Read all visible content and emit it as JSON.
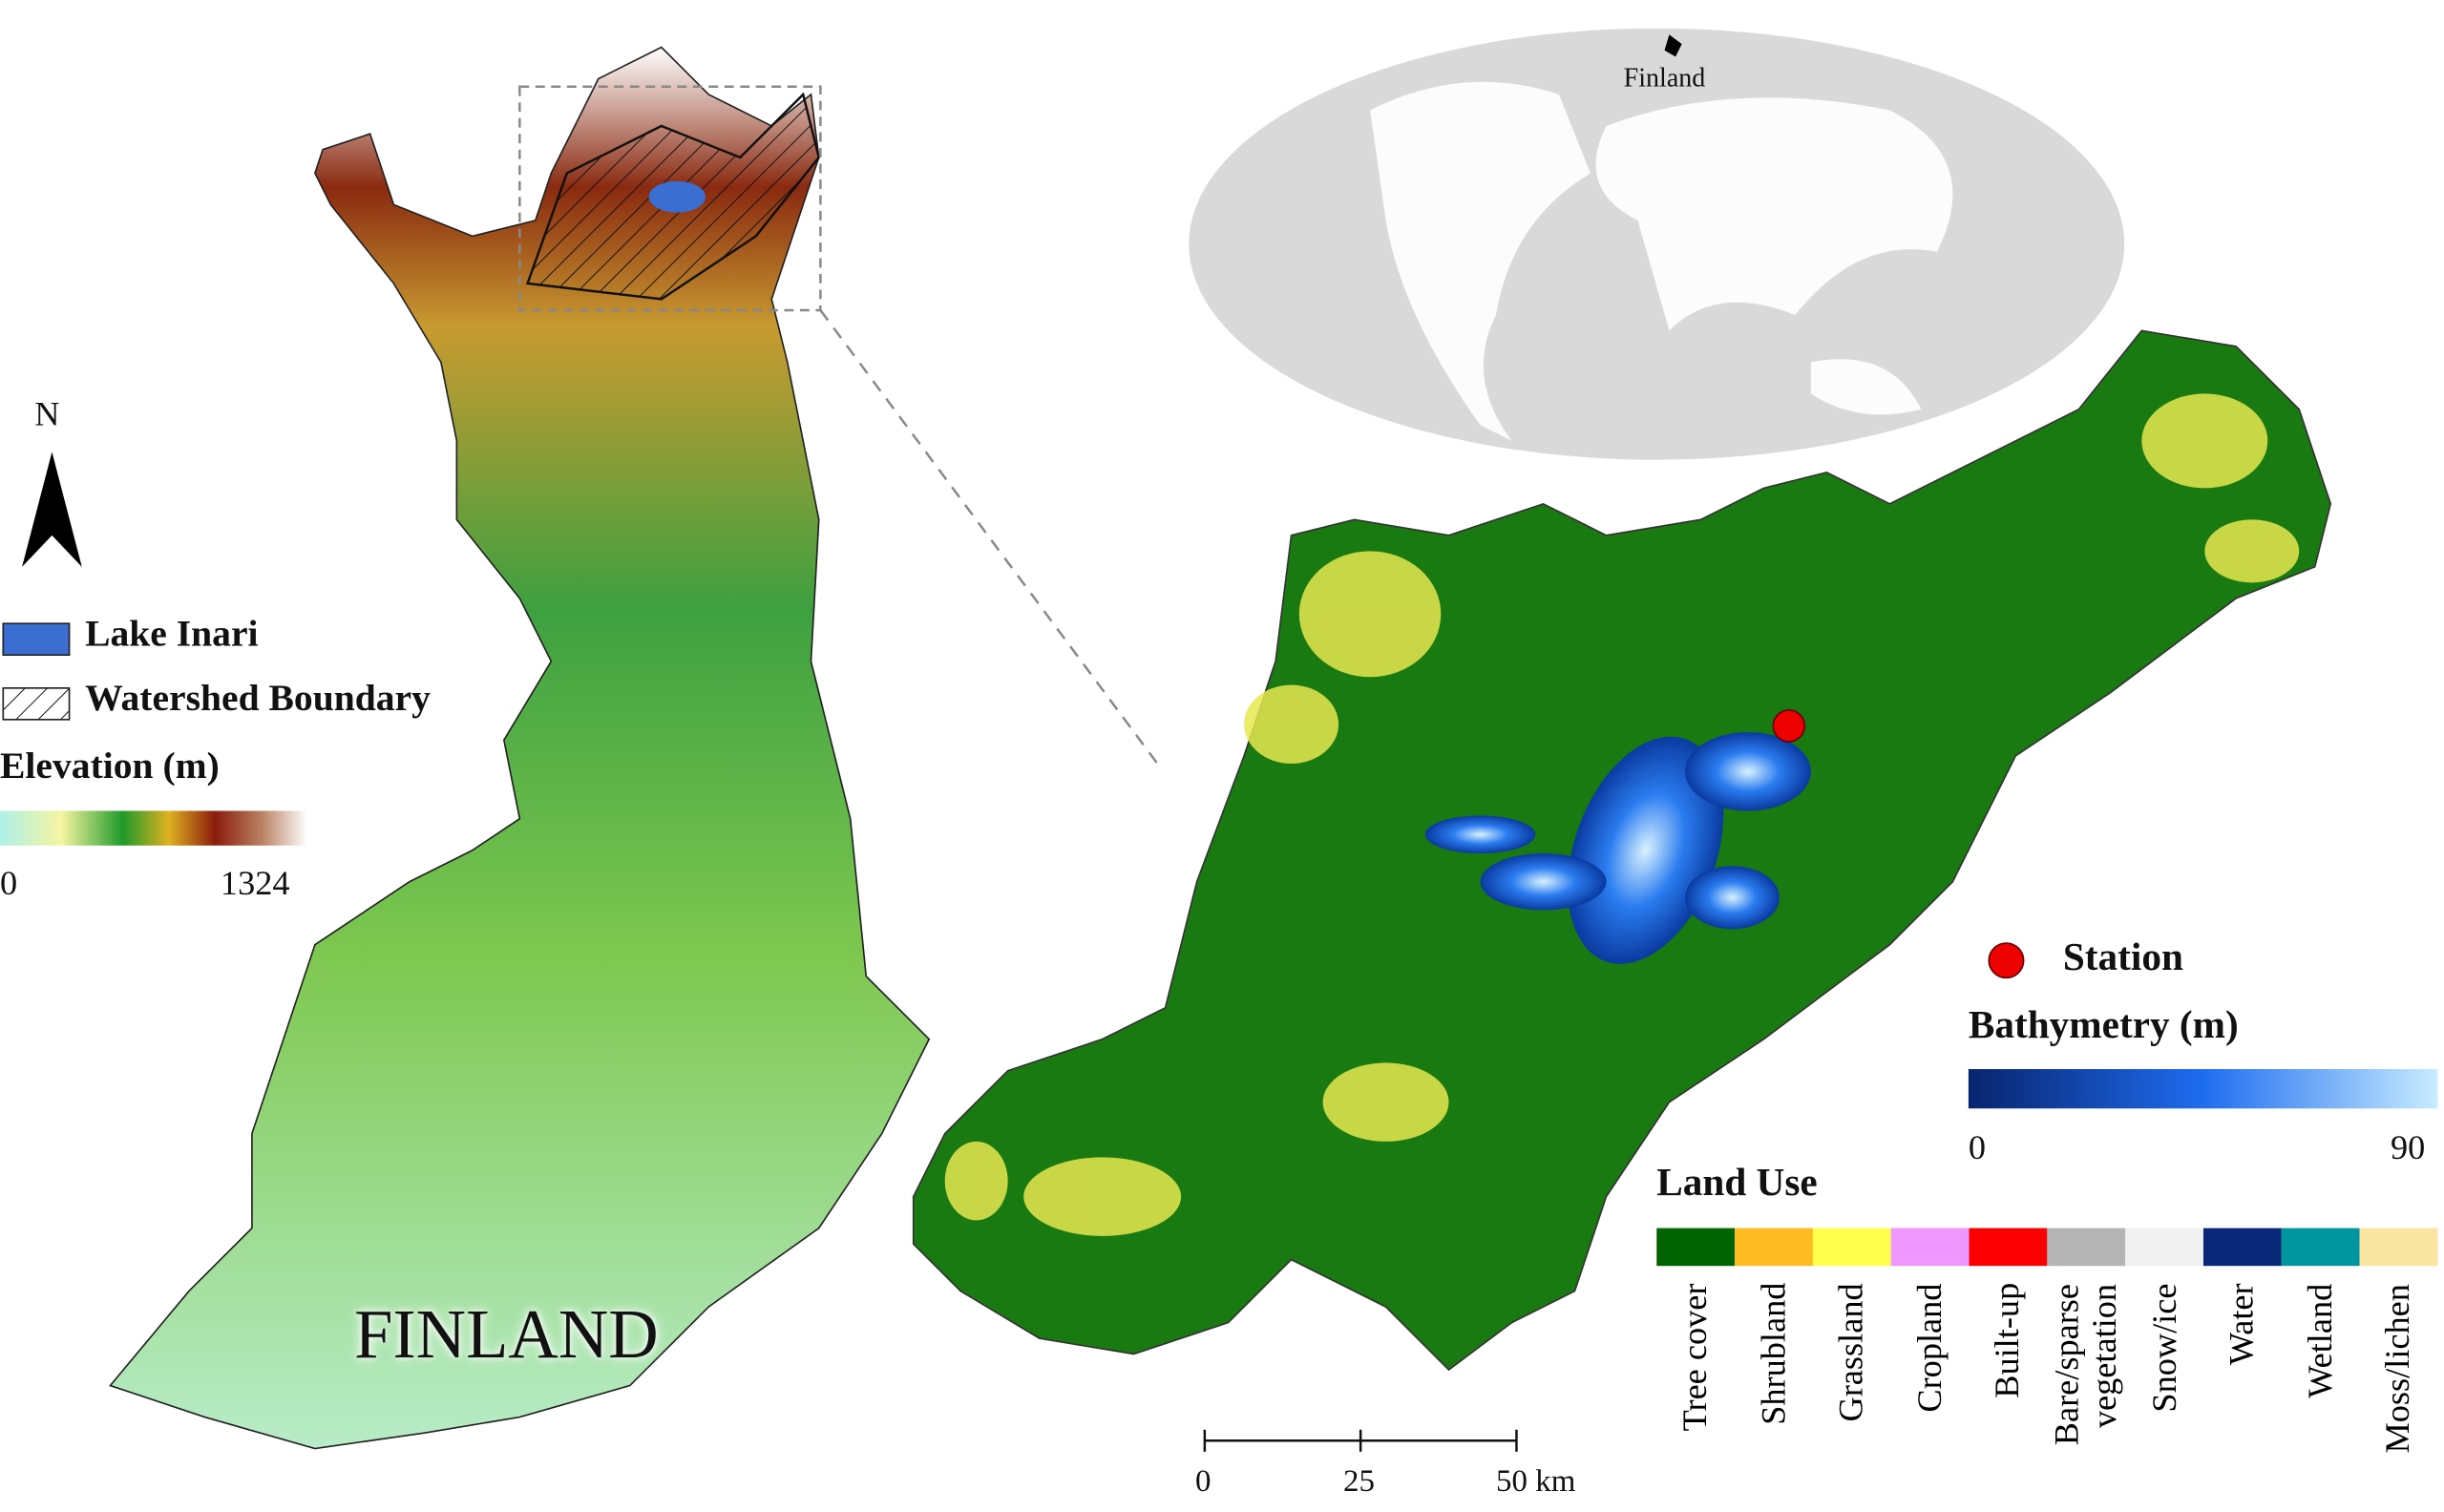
{
  "inset_label": "Finland",
  "north_arrow": "N",
  "legend": {
    "items": [
      "Lake Inari",
      "Watershed Boundary"
    ],
    "elevation": {
      "title": "Elevation (m)",
      "min": 0,
      "max": 1324
    }
  },
  "country_label": "FINLAND",
  "station": "Station",
  "bathymetry": {
    "title": "Bathymetry (m)",
    "min": 0,
    "max": 90
  },
  "land_use": {
    "title": "Land Use",
    "classes": [
      {
        "name": "Tree cover",
        "color": "#006400"
      },
      {
        "name": "Shrubland",
        "color": "#ffbb22"
      },
      {
        "name": "Grassland",
        "color": "#ffff4c"
      },
      {
        "name": "Cropland",
        "color": "#f096ff"
      },
      {
        "name": "Built-up",
        "color": "#fa0000"
      },
      {
        "name": "Bare/sparse vegetation",
        "color": "#b4b4b4"
      },
      {
        "name": "Snow/ice",
        "color": "#f0f0f0"
      },
      {
        "name": "Water",
        "color": "#0a2878"
      },
      {
        "name": "Wetland",
        "color": "#0096a0"
      },
      {
        "name": "Moss/lichen",
        "color": "#fae6a0"
      }
    ]
  },
  "scale_bar": {
    "ticks": [
      0,
      25
    ],
    "end": "50 km"
  }
}
